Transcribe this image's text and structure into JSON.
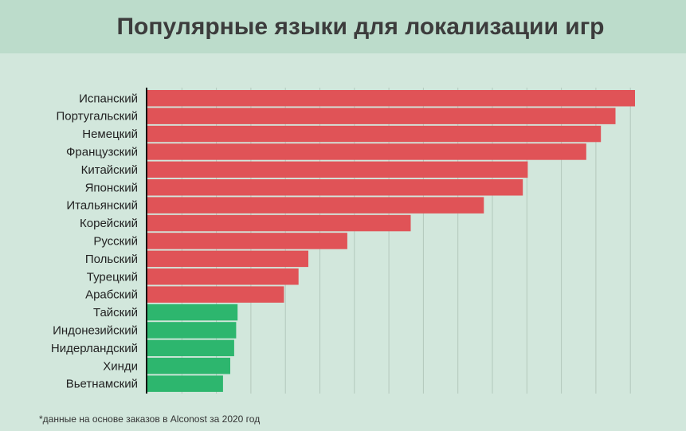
{
  "title": "Популярные языки для локализации игр",
  "footnote": "*данные на основе заказов в Alconost за 2020 год",
  "colors": {
    "background": "#d2e7dc",
    "header": "#bcdccb",
    "red_bar": "#e05357",
    "green_bar": "#2db66e",
    "grid": "#b3c8bc",
    "axis": "#111111"
  },
  "chart_data": {
    "type": "bar",
    "orientation": "horizontal",
    "title": "Популярные языки для локализации игр",
    "xlabel": "",
    "ylabel": "",
    "grid": true,
    "xlim": [
      0,
      100
    ],
    "categories": [
      "Испанский",
      "Португальский",
      "Немецкий",
      "Французский",
      "Китайский",
      "Японский",
      "Итальянский",
      "Корейский",
      "Русский",
      "Польский",
      "Турецкий",
      "Арабский",
      "Тайский",
      "Индонезийский",
      "Нидерландский",
      "Хинди",
      "Вьетнамский"
    ],
    "values": [
      100,
      96,
      93,
      90,
      78,
      77,
      69,
      54,
      41,
      33,
      31,
      28,
      18.5,
      18.2,
      17.8,
      17,
      15.5
    ],
    "bar_colors": [
      "#e05357",
      "#e05357",
      "#e05357",
      "#e05357",
      "#e05357",
      "#e05357",
      "#e05357",
      "#e05357",
      "#e05357",
      "#e05357",
      "#e05357",
      "#e05357",
      "#2db66e",
      "#2db66e",
      "#2db66e",
      "#2db66e",
      "#2db66e"
    ]
  }
}
